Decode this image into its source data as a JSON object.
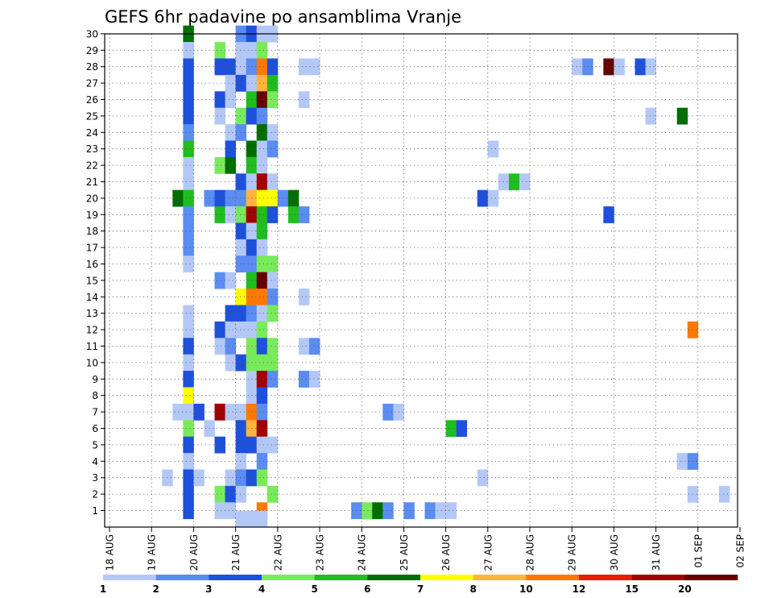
{
  "chart_data": {
    "type": "heatmap",
    "title": "GEFS 6hr padavine po ansamblima Vranje",
    "xlabel": "",
    "ylabel": "",
    "x_ticks": [
      "18 AUG",
      "19 AUG",
      "20 AUG",
      "21 AUG",
      "22 AUG",
      "23 AUG",
      "24 AUG",
      "25 AUG",
      "26 AUG",
      "27 AUG",
      "28 AUG",
      "29 AUG",
      "30 AUG",
      "31 AUG",
      "01 SEP",
      "02 SEP"
    ],
    "x_range_days": [
      0,
      15
    ],
    "y_ticks": [
      1,
      2,
      3,
      4,
      5,
      6,
      7,
      8,
      9,
      10,
      11,
      12,
      13,
      14,
      15,
      16,
      17,
      18,
      19,
      20,
      21,
      22,
      23,
      24,
      25,
      26,
      27,
      28,
      29,
      30
    ],
    "y_range": [
      0.25,
      30.25
    ],
    "grid": true,
    "time_step_hours": 6,
    "colorbar": {
      "labels": [
        "1",
        "2",
        "3",
        "4",
        "5",
        "6",
        "7",
        "8",
        "10",
        "12",
        "15",
        "20"
      ],
      "colors": [
        "#b4c8f8",
        "#5a8cf2",
        "#1e50dc",
        "#78eb5a",
        "#1ebe1e",
        "#006e00",
        "#ffff00",
        "#ffb43c",
        "#ff7800",
        "#e61e00",
        "#a00000",
        "#640000"
      ]
    },
    "cells": [
      {
        "m": 30,
        "t": 7,
        "l": 6
      },
      {
        "m": 30,
        "t": 12,
        "l": 2
      },
      {
        "m": 30,
        "t": 13,
        "l": 3
      },
      {
        "m": 30,
        "t": 14,
        "l": 1
      },
      {
        "m": 30,
        "t": 15,
        "l": 1
      },
      {
        "m": 29,
        "t": 7,
        "l": 1
      },
      {
        "m": 29,
        "t": 10,
        "l": 4
      },
      {
        "m": 29,
        "t": 12,
        "l": 1
      },
      {
        "m": 29,
        "t": 13,
        "l": 1
      },
      {
        "m": 29,
        "t": 14,
        "l": 4
      },
      {
        "m": 28,
        "t": 7,
        "l": 3
      },
      {
        "m": 28,
        "t": 10,
        "l": 3
      },
      {
        "m": 28,
        "t": 11,
        "l": 3
      },
      {
        "m": 28,
        "t": 12,
        "l": 1
      },
      {
        "m": 28,
        "t": 13,
        "l": 2
      },
      {
        "m": 28,
        "t": 14,
        "l": 9
      },
      {
        "m": 28,
        "t": 15,
        "l": 3
      },
      {
        "m": 28,
        "t": 18,
        "l": 1
      },
      {
        "m": 28,
        "t": 19,
        "l": 1
      },
      {
        "m": 28,
        "t": 44,
        "l": 1
      },
      {
        "m": 28,
        "t": 45,
        "l": 2
      },
      {
        "m": 28,
        "t": 47,
        "l": 12
      },
      {
        "m": 28,
        "t": 48,
        "l": 1
      },
      {
        "m": 28,
        "t": 50,
        "l": 3
      },
      {
        "m": 28,
        "t": 51,
        "l": 1
      },
      {
        "m": 27,
        "t": 7,
        "l": 3
      },
      {
        "m": 27,
        "t": 11,
        "l": 1
      },
      {
        "m": 27,
        "t": 12,
        "l": 3
      },
      {
        "m": 27,
        "t": 13,
        "l": 1
      },
      {
        "m": 27,
        "t": 14,
        "l": 8
      },
      {
        "m": 27,
        "t": 15,
        "l": 5
      },
      {
        "m": 26,
        "t": 7,
        "l": 3
      },
      {
        "m": 26,
        "t": 10,
        "l": 3
      },
      {
        "m": 26,
        "t": 11,
        "l": 1
      },
      {
        "m": 26,
        "t": 13,
        "l": 5
      },
      {
        "m": 26,
        "t": 14,
        "l": 12
      },
      {
        "m": 26,
        "t": 15,
        "l": 4
      },
      {
        "m": 26,
        "t": 18,
        "l": 1
      },
      {
        "m": 25,
        "t": 7,
        "l": 3
      },
      {
        "m": 25,
        "t": 10,
        "l": 1
      },
      {
        "m": 25,
        "t": 12,
        "l": 4
      },
      {
        "m": 25,
        "t": 13,
        "l": 3
      },
      {
        "m": 25,
        "t": 14,
        "l": 2
      },
      {
        "m": 25,
        "t": 51,
        "l": 1
      },
      {
        "m": 25,
        "t": 54,
        "l": 6
      },
      {
        "m": 24,
        "t": 7,
        "l": 2
      },
      {
        "m": 24,
        "t": 11,
        "l": 1
      },
      {
        "m": 24,
        "t": 12,
        "l": 2
      },
      {
        "m": 24,
        "t": 14,
        "l": 6
      },
      {
        "m": 24,
        "t": 15,
        "l": 1
      },
      {
        "m": 23,
        "t": 7,
        "l": 5
      },
      {
        "m": 23,
        "t": 11,
        "l": 3
      },
      {
        "m": 23,
        "t": 13,
        "l": 6
      },
      {
        "m": 23,
        "t": 14,
        "l": 1
      },
      {
        "m": 23,
        "t": 15,
        "l": 2
      },
      {
        "m": 23,
        "t": 36,
        "l": 1
      },
      {
        "m": 22,
        "t": 7,
        "l": 1
      },
      {
        "m": 22,
        "t": 10,
        "l": 4
      },
      {
        "m": 22,
        "t": 11,
        "l": 6
      },
      {
        "m": 22,
        "t": 13,
        "l": 5
      },
      {
        "m": 22,
        "t": 14,
        "l": 1
      },
      {
        "m": 21,
        "t": 7,
        "l": 1
      },
      {
        "m": 21,
        "t": 12,
        "l": 3
      },
      {
        "m": 21,
        "t": 13,
        "l": 1
      },
      {
        "m": 21,
        "t": 14,
        "l": 11
      },
      {
        "m": 21,
        "t": 15,
        "l": 1
      },
      {
        "m": 21,
        "t": 37,
        "l": 1
      },
      {
        "m": 21,
        "t": 38,
        "l": 5
      },
      {
        "m": 21,
        "t": 39,
        "l": 1
      },
      {
        "m": 20,
        "t": 6,
        "l": 6
      },
      {
        "m": 20,
        "t": 7,
        "l": 5
      },
      {
        "m": 20,
        "t": 9,
        "l": 2
      },
      {
        "m": 20,
        "t": 10,
        "l": 3
      },
      {
        "m": 20,
        "t": 11,
        "l": 2
      },
      {
        "m": 20,
        "t": 12,
        "l": 2
      },
      {
        "m": 20,
        "t": 13,
        "l": 8
      },
      {
        "m": 20,
        "t": 14,
        "l": 7
      },
      {
        "m": 20,
        "t": 15,
        "l": 7
      },
      {
        "m": 20,
        "t": 16,
        "l": 2
      },
      {
        "m": 20,
        "t": 17,
        "l": 6
      },
      {
        "m": 20,
        "t": 35,
        "l": 3
      },
      {
        "m": 20,
        "t": 36,
        "l": 1
      },
      {
        "m": 19,
        "t": 7,
        "l": 2
      },
      {
        "m": 19,
        "t": 10,
        "l": 5
      },
      {
        "m": 19,
        "t": 11,
        "l": 1
      },
      {
        "m": 19,
        "t": 12,
        "l": 4
      },
      {
        "m": 19,
        "t": 13,
        "l": 11
      },
      {
        "m": 19,
        "t": 14,
        "l": 5
      },
      {
        "m": 19,
        "t": 15,
        "l": 3
      },
      {
        "m": 19,
        "t": 17,
        "l": 5
      },
      {
        "m": 19,
        "t": 18,
        "l": 2
      },
      {
        "m": 19,
        "t": 47,
        "l": 3
      },
      {
        "m": 18,
        "t": 7,
        "l": 2
      },
      {
        "m": 18,
        "t": 12,
        "l": 3
      },
      {
        "m": 18,
        "t": 13,
        "l": 1
      },
      {
        "m": 18,
        "t": 14,
        "l": 5
      },
      {
        "m": 17,
        "t": 7,
        "l": 2
      },
      {
        "m": 17,
        "t": 12,
        "l": 1
      },
      {
        "m": 17,
        "t": 13,
        "l": 3
      },
      {
        "m": 17,
        "t": 14,
        "l": 1
      },
      {
        "m": 16,
        "t": 7,
        "l": 1
      },
      {
        "m": 16,
        "t": 12,
        "l": 2
      },
      {
        "m": 16,
        "t": 13,
        "l": 2
      },
      {
        "m": 16,
        "t": 14,
        "l": 4
      },
      {
        "m": 16,
        "t": 15,
        "l": 4
      },
      {
        "m": 15,
        "t": 10,
        "l": 2
      },
      {
        "m": 15,
        "t": 11,
        "l": 1
      },
      {
        "m": 15,
        "t": 13,
        "l": 5
      },
      {
        "m": 15,
        "t": 14,
        "l": 12
      },
      {
        "m": 15,
        "t": 15,
        "l": 1
      },
      {
        "m": 14,
        "t": 12,
        "l": 7
      },
      {
        "m": 14,
        "t": 13,
        "l": 9
      },
      {
        "m": 14,
        "t": 14,
        "l": 9
      },
      {
        "m": 14,
        "t": 15,
        "l": 2
      },
      {
        "m": 14,
        "t": 18,
        "l": 1
      },
      {
        "m": 13,
        "t": 7,
        "l": 1
      },
      {
        "m": 13,
        "t": 11,
        "l": 3
      },
      {
        "m": 13,
        "t": 12,
        "l": 3
      },
      {
        "m": 13,
        "t": 13,
        "l": 2
      },
      {
        "m": 13,
        "t": 14,
        "l": 1
      },
      {
        "m": 13,
        "t": 15,
        "l": 4
      },
      {
        "m": 12,
        "t": 7,
        "l": 1
      },
      {
        "m": 12,
        "t": 10,
        "l": 3
      },
      {
        "m": 12,
        "t": 11,
        "l": 1
      },
      {
        "m": 12,
        "t": 12,
        "l": 1
      },
      {
        "m": 12,
        "t": 13,
        "l": 1
      },
      {
        "m": 12,
        "t": 14,
        "l": 4
      },
      {
        "m": 12,
        "t": 55,
        "l": 9
      },
      {
        "m": 11,
        "t": 7,
        "l": 3
      },
      {
        "m": 11,
        "t": 10,
        "l": 1
      },
      {
        "m": 11,
        "t": 11,
        "l": 2
      },
      {
        "m": 11,
        "t": 13,
        "l": 4
      },
      {
        "m": 11,
        "t": 14,
        "l": 3
      },
      {
        "m": 11,
        "t": 15,
        "l": 4
      },
      {
        "m": 11,
        "t": 18,
        "l": 1
      },
      {
        "m": 11,
        "t": 19,
        "l": 2
      },
      {
        "m": 10,
        "t": 7,
        "l": 1
      },
      {
        "m": 10,
        "t": 11,
        "l": 1
      },
      {
        "m": 10,
        "t": 12,
        "l": 3
      },
      {
        "m": 10,
        "t": 13,
        "l": 4
      },
      {
        "m": 10,
        "t": 14,
        "l": 4
      },
      {
        "m": 10,
        "t": 15,
        "l": 4
      },
      {
        "m": 9,
        "t": 7,
        "l": 3
      },
      {
        "m": 9,
        "t": 13,
        "l": 1
      },
      {
        "m": 9,
        "t": 14,
        "l": 11
      },
      {
        "m": 9,
        "t": 15,
        "l": 2
      },
      {
        "m": 9,
        "t": 18,
        "l": 2
      },
      {
        "m": 9,
        "t": 19,
        "l": 1
      },
      {
        "m": 8,
        "t": 7,
        "l": 7
      },
      {
        "m": 8,
        "t": 13,
        "l": 1
      },
      {
        "m": 8,
        "t": 14,
        "l": 3
      },
      {
        "m": 7,
        "t": 6,
        "l": 1
      },
      {
        "m": 7,
        "t": 7,
        "l": 1
      },
      {
        "m": 7,
        "t": 8,
        "l": 3
      },
      {
        "m": 7,
        "t": 10,
        "l": 11
      },
      {
        "m": 7,
        "t": 11,
        "l": 1
      },
      {
        "m": 7,
        "t": 12,
        "l": 1
      },
      {
        "m": 7,
        "t": 13,
        "l": 9
      },
      {
        "m": 7,
        "t": 14,
        "l": 2
      },
      {
        "m": 7,
        "t": 26,
        "l": 2
      },
      {
        "m": 7,
        "t": 27,
        "l": 1
      },
      {
        "m": 6,
        "t": 7,
        "l": 4
      },
      {
        "m": 6,
        "t": 9,
        "l": 1
      },
      {
        "m": 6,
        "t": 12,
        "l": 3
      },
      {
        "m": 6,
        "t": 13,
        "l": 8
      },
      {
        "m": 6,
        "t": 14,
        "l": 11
      },
      {
        "m": 6,
        "t": 32,
        "l": 5
      },
      {
        "m": 6,
        "t": 33,
        "l": 3
      },
      {
        "m": 5,
        "t": 7,
        "l": 3
      },
      {
        "m": 5,
        "t": 10,
        "l": 3
      },
      {
        "m": 5,
        "t": 12,
        "l": 3
      },
      {
        "m": 5,
        "t": 13,
        "l": 3
      },
      {
        "m": 5,
        "t": 14,
        "l": 1
      },
      {
        "m": 5,
        "t": 15,
        "l": 1
      },
      {
        "m": 4,
        "t": 7,
        "l": 1
      },
      {
        "m": 4,
        "t": 12,
        "l": 1
      },
      {
        "m": 4,
        "t": 14,
        "l": 2
      },
      {
        "m": 4,
        "t": 54,
        "l": 1
      },
      {
        "m": 4,
        "t": 55,
        "l": 2
      },
      {
        "m": 3,
        "t": 5,
        "l": 1
      },
      {
        "m": 3,
        "t": 7,
        "l": 3
      },
      {
        "m": 3,
        "t": 8,
        "l": 1
      },
      {
        "m": 3,
        "t": 11,
        "l": 1
      },
      {
        "m": 3,
        "t": 12,
        "l": 2
      },
      {
        "m": 3,
        "t": 13,
        "l": 3
      },
      {
        "m": 3,
        "t": 14,
        "l": 4
      },
      {
        "m": 3,
        "t": 35,
        "l": 1
      },
      {
        "m": 2,
        "t": 7,
        "l": 3
      },
      {
        "m": 2,
        "t": 10,
        "l": 4
      },
      {
        "m": 2,
        "t": 11,
        "l": 3
      },
      {
        "m": 2,
        "t": 12,
        "l": 1
      },
      {
        "m": 2,
        "t": 15,
        "l": 4
      },
      {
        "m": 2,
        "t": 55,
        "l": 1
      },
      {
        "m": 2,
        "t": 58,
        "l": 1
      },
      {
        "m": 1,
        "t": 7,
        "l": 3
      },
      {
        "m": 1,
        "t": 10,
        "l": 1
      },
      {
        "m": 1,
        "t": 11,
        "l": 1
      },
      {
        "m": 1,
        "t": 14,
        "l": 9
      },
      {
        "m": 1,
        "t": 23,
        "l": 2
      },
      {
        "m": 1,
        "t": 24,
        "l": 4
      },
      {
        "m": 1,
        "t": 25,
        "l": 6
      },
      {
        "m": 1,
        "t": 26,
        "l": 2
      },
      {
        "m": 1,
        "t": 28,
        "l": 2
      },
      {
        "m": 1,
        "t": 30,
        "l": 2
      },
      {
        "m": 1,
        "t": 31,
        "l": 1
      },
      {
        "m": 1,
        "t": 32,
        "l": 1
      },
      {
        "m": 0.5,
        "t": 12,
        "l": 1
      },
      {
        "m": 0.5,
        "t": 13,
        "l": 1
      },
      {
        "m": 0.5,
        "t": 14,
        "l": 1
      }
    ]
  }
}
